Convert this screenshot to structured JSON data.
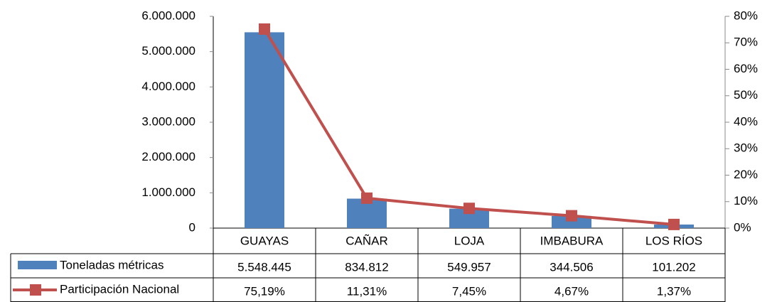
{
  "chart_data": {
    "type": "bar",
    "categories": [
      "GUAYAS",
      "CAÑAR",
      "LOJA",
      "IMBABURA",
      "LOS RÍOS"
    ],
    "series": [
      {
        "name": "Toneladas métricas",
        "type": "bar",
        "color": "#4f81bd",
        "values": [
          5548445,
          834812,
          549957,
          344506,
          101202
        ],
        "value_labels": [
          "5.548.445",
          "834.812",
          "549.957",
          "344.506",
          "101.202"
        ]
      },
      {
        "name": "Participación Nacional",
        "type": "line",
        "axis": "y2",
        "color": "#c0504d",
        "values": [
          75.19,
          11.31,
          7.45,
          4.67,
          1.37
        ],
        "value_labels": [
          "75,19%",
          "11,31%",
          "7,45%",
          "4,67%",
          "1,37%"
        ]
      }
    ],
    "ylim": [
      0,
      6000000
    ],
    "yticks": [
      0,
      {
        "value": 1000000,
        "label": "1.000.000"
      },
      {
        "value": 2000000,
        "label": "2.000.000"
      },
      {
        "value": 3000000,
        "label": "3.000.000"
      },
      {
        "value": 4000000,
        "label": "4.000.000"
      },
      {
        "value": 5000000,
        "label": "5.000.000"
      },
      {
        "value": 6000000,
        "label": "6.000.000"
      }
    ],
    "y2lim": [
      0,
      80
    ],
    "y2ticks": [
      {
        "value": 0,
        "label": "0%"
      },
      {
        "value": 10,
        "label": "10%"
      },
      {
        "value": 20,
        "label": "20%"
      },
      {
        "value": 30,
        "label": "30%"
      },
      {
        "value": 40,
        "label": "40%"
      },
      {
        "value": 50,
        "label": "50%"
      },
      {
        "value": 60,
        "label": "60%"
      },
      {
        "value": 70,
        "label": "70%"
      },
      {
        "value": 80,
        "label": "80%"
      }
    ],
    "grid": false
  }
}
